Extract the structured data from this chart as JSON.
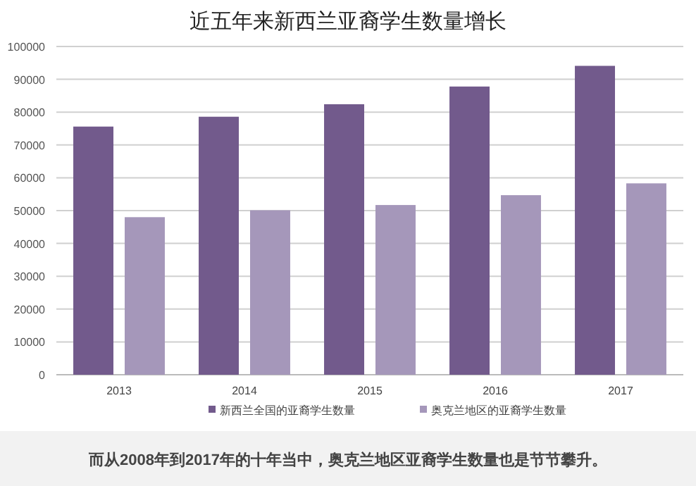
{
  "chart_data": {
    "type": "bar",
    "title": "近五年来新西兰亚裔学生数量增长",
    "categories": [
      "2013",
      "2014",
      "2015",
      "2016",
      "2017"
    ],
    "series": [
      {
        "name": "新西兰全国的亚裔学生数量",
        "color": "#725a8c",
        "values": [
          75600,
          78600,
          82400,
          87800,
          94100
        ]
      },
      {
        "name": "奥克兰地区的亚裔学生数量",
        "color": "#a597ba",
        "values": [
          48000,
          50100,
          51700,
          54700,
          58300
        ]
      }
    ],
    "ylim": [
      0,
      100000
    ],
    "yticks": [
      0,
      10000,
      20000,
      30000,
      40000,
      50000,
      60000,
      70000,
      80000,
      90000,
      100000
    ],
    "grid": "y",
    "legend": "bottom",
    "annotations": [
      "而从2008年到2017年的十年当中，奥克兰地区亚裔学生数量也是节节攀升。"
    ]
  }
}
